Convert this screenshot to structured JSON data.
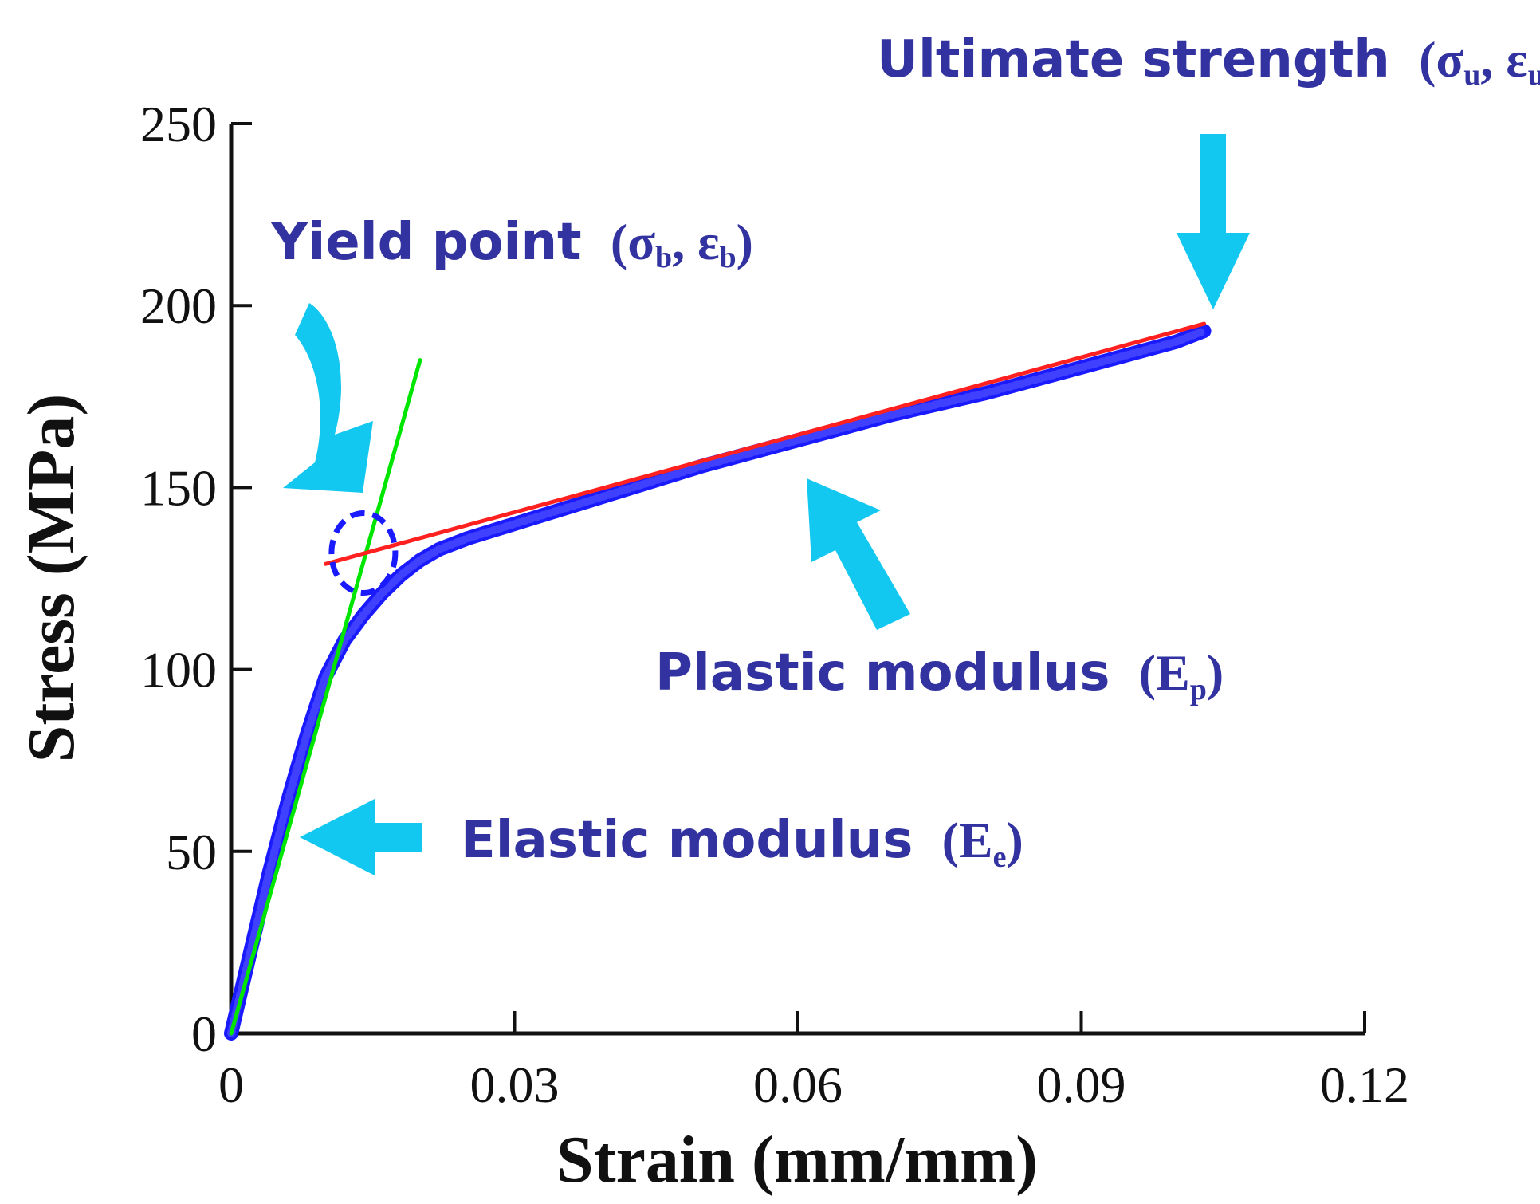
{
  "chart_data": {
    "type": "line",
    "xlabel": "Strain (mm/mm)",
    "ylabel": "Stress (MPa)",
    "xlim": [
      0,
      0.12
    ],
    "ylim": [
      0,
      250
    ],
    "x_ticks": [
      "0",
      "0.03",
      "0.06",
      "0.09",
      "0.12"
    ],
    "y_ticks": [
      "0",
      "50",
      "100",
      "150",
      "200",
      "250"
    ],
    "grid": false,
    "series": [
      {
        "color": "#1a1aff",
        "style": "thick-dotted",
        "x": [
          0,
          0.002,
          0.004,
          0.006,
          0.008,
          0.01,
          0.012,
          0.014,
          0.016,
          0.018,
          0.02,
          0.022,
          0.025,
          0.03,
          0.04,
          0.05,
          0.06,
          0.07,
          0.08,
          0.09,
          0.1,
          0.103
        ],
        "y": [
          0,
          22,
          44,
          64,
          82,
          98,
          108,
          115,
          121,
          126,
          130,
          133,
          136,
          140,
          148,
          156,
          163,
          170,
          176,
          183,
          190,
          193
        ]
      },
      {
        "color": "#00e600",
        "style": "line",
        "x": [
          0,
          0.02
        ],
        "y": [
          0,
          185
        ]
      },
      {
        "color": "#ff2020",
        "style": "line",
        "x": [
          0.01,
          0.103
        ],
        "y": [
          129,
          195
        ]
      }
    ],
    "yield_marker": {
      "x": 0.014,
      "y": 132,
      "color": "#1a1aff"
    },
    "annotations": [
      {
        "name": "ultimate-strength",
        "label": "Ultimate strength",
        "paren_open": "(",
        "sym1": "σ",
        "sub1": "u",
        "sep": ", ",
        "sym2": "ε",
        "sub2": "u",
        "paren_close": ")",
        "arrow_color": "#13c8f0"
      },
      {
        "name": "yield-point",
        "label": "Yield point",
        "paren_open": "(",
        "sym1": "σ",
        "sub1": "b",
        "sep": ", ",
        "sym2": "ε",
        "sub2": "b",
        "paren_close": ")",
        "arrow_color": "#13c8f0"
      },
      {
        "name": "plastic-modulus",
        "label": "Plastic modulus",
        "paren_open": "(",
        "sym1": "E",
        "sub1": "p",
        "paren_close": ")",
        "arrow_color": "#13c8f0"
      },
      {
        "name": "elastic-modulus",
        "label": "Elastic modulus",
        "paren_open": "(",
        "sym1": "E",
        "sub1": "e",
        "paren_close": ")",
        "arrow_color": "#13c8f0"
      }
    ]
  }
}
